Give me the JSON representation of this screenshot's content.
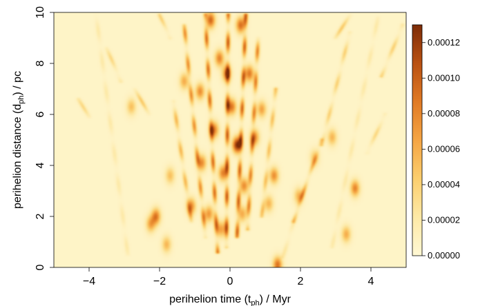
{
  "chart_data": {
    "type": "heatmap",
    "title": "",
    "xlabel": {
      "prefix": "perihelion time (t",
      "subscript": "ph",
      "suffix": ") / Myr"
    },
    "ylabel": {
      "prefix": "perihelion distance (d",
      "subscript": "ph",
      "suffix": ") / pc"
    },
    "xlim": [
      -5,
      5
    ],
    "ylim": [
      0,
      10
    ],
    "x_ticks": [
      -4,
      -2,
      0,
      2,
      4
    ],
    "x_tick_labels": [
      "−4",
      "−2",
      "0",
      "2",
      "4"
    ],
    "y_ticks": [
      0,
      2,
      4,
      6,
      8,
      10
    ],
    "y_tick_labels": [
      "0",
      "2",
      "4",
      "6",
      "8",
      "10"
    ],
    "colorbar": {
      "range": [
        0,
        0.00013
      ],
      "ticks": [
        0,
        2e-05,
        4e-05,
        6e-05,
        8e-05,
        0.0001,
        0.00012
      ],
      "tick_labels": [
        "0.00000",
        "0.00002",
        "0.00004",
        "0.00006",
        "0.00008",
        "0.00010",
        "0.00012"
      ],
      "colors": [
        "#fff8d4",
        "#fde9a6",
        "#fbce6e",
        "#f5a544",
        "#e07a24",
        "#b95112",
        "#7d2c07"
      ]
    },
    "background_value": 6e-06,
    "grid": false,
    "legend": "colorbar-right",
    "ridges": [
      {
        "t0": -0.35,
        "d0": 0.6,
        "t1": -0.7,
        "d1": 9.9,
        "amp": 8.5e-05
      },
      {
        "t0": -0.1,
        "d0": 0.8,
        "t1": -0.05,
        "d1": 9.9,
        "amp": 9.5e-05
      },
      {
        "t0": 0.2,
        "d0": 1.2,
        "t1": 0.45,
        "d1": 9.9,
        "amp": 9e-05
      },
      {
        "t0": 0.5,
        "d0": 1.5,
        "t1": 0.8,
        "d1": 9.0,
        "amp": 7.5e-05
      },
      {
        "t0": -0.7,
        "d0": 1.2,
        "t1": -1.3,
        "d1": 9.5,
        "amp": 7e-05
      },
      {
        "t0": -1.1,
        "d0": 1.8,
        "t1": -1.6,
        "d1": 6.5,
        "amp": 5e-05
      },
      {
        "t0": 0.9,
        "d0": 2.0,
        "t1": 1.3,
        "d1": 7.0,
        "amp": 4.5e-05
      },
      {
        "t0": 1.8,
        "d0": 1.8,
        "t1": 2.6,
        "d1": 5.0,
        "amp": 4.5e-05
      },
      {
        "t0": 2.6,
        "d0": 4.8,
        "t1": 3.4,
        "d1": 9.2,
        "amp": 3.5e-05
      },
      {
        "t0": 3.0,
        "d0": 9.0,
        "t1": 3.4,
        "d1": 9.9,
        "amp": 4e-05
      },
      {
        "t0": -1.7,
        "d0": 9.0,
        "t1": -2.0,
        "d1": 9.9,
        "amp": 3.5e-05
      },
      {
        "t0": -2.3,
        "d0": 6.0,
        "t1": -2.7,
        "d1": 7.0,
        "amp": 4e-05
      },
      {
        "t0": -3.1,
        "d0": 7.3,
        "t1": -3.5,
        "d1": 8.6,
        "amp": 3e-05
      },
      {
        "t0": -4.0,
        "d0": 5.9,
        "t1": -4.3,
        "d1": 6.6,
        "amp": 3e-05
      },
      {
        "t0": 3.9,
        "d0": 4.5,
        "t1": 4.4,
        "d1": 6.0,
        "amp": 3e-05
      },
      {
        "t0": 4.3,
        "d0": 7.5,
        "t1": 4.9,
        "d1": 9.5,
        "amp": 3.5e-05
      },
      {
        "t0": -2.9,
        "d0": 0.5,
        "t1": -3.8,
        "d1": 9.9,
        "amp": 1.5e-05
      },
      {
        "t0": 2.9,
        "d0": 0.8,
        "t1": 4.2,
        "d1": 9.8,
        "amp": 1.5e-05
      },
      {
        "t0": 1.5,
        "d0": 0.4,
        "t1": 2.2,
        "d1": 3.5,
        "amp": 1.8e-05
      }
    ],
    "blobs": [
      {
        "t": 0.2,
        "d": 4.8,
        "amp": 0.00012
      },
      {
        "t": -0.55,
        "d": 9.7,
        "amp": 9e-05
      },
      {
        "t": 0.3,
        "d": 9.5,
        "amp": 8.5e-05
      },
      {
        "t": -0.3,
        "d": 8.2,
        "amp": 7.5e-05
      },
      {
        "t": 0.55,
        "d": 7.6,
        "amp": 8e-05
      },
      {
        "t": -0.85,
        "d": 6.9,
        "amp": 7e-05
      },
      {
        "t": 0.05,
        "d": 6.3,
        "amp": 8e-05
      },
      {
        "t": -0.45,
        "d": 5.4,
        "amp": 7.5e-05
      },
      {
        "t": 0.7,
        "d": 5.1,
        "amp": 7e-05
      },
      {
        "t": -0.8,
        "d": 4.1,
        "amp": 7e-05
      },
      {
        "t": -0.2,
        "d": 3.7,
        "amp": 7.5e-05
      },
      {
        "t": 0.4,
        "d": 3.2,
        "amp": 7e-05
      },
      {
        "t": -1.1,
        "d": 2.4,
        "amp": 7e-05
      },
      {
        "t": -0.6,
        "d": 2.1,
        "amp": 6.5e-05
      },
      {
        "t": -0.25,
        "d": 1.5,
        "amp": 6e-05
      },
      {
        "t": 0.35,
        "d": 2.1,
        "amp": 5.5e-05
      },
      {
        "t": 1.25,
        "d": 3.6,
        "amp": 7e-05
      },
      {
        "t": 1.1,
        "d": 2.5,
        "amp": 5e-05
      },
      {
        "t": -2.1,
        "d": 2.0,
        "amp": 8e-05
      },
      {
        "t": -2.25,
        "d": 1.7,
        "amp": 6e-05
      },
      {
        "t": -1.8,
        "d": 0.9,
        "amp": 5e-05
      },
      {
        "t": 1.35,
        "d": 0.1,
        "amp": 8.5e-05
      },
      {
        "t": 1.95,
        "d": 2.8,
        "amp": 5e-05
      },
      {
        "t": 3.55,
        "d": 3.1,
        "amp": 7.5e-05
      },
      {
        "t": 3.3,
        "d": 1.3,
        "amp": 5.5e-05
      },
      {
        "t": 2.9,
        "d": 5.1,
        "amp": 5e-05
      },
      {
        "t": 0.9,
        "d": 6.2,
        "amp": 6e-05
      },
      {
        "t": -0.1,
        "d": 7.6,
        "amp": 7e-05
      },
      {
        "t": -1.3,
        "d": 7.3,
        "amp": 5.5e-05
      },
      {
        "t": -1.7,
        "d": 3.6,
        "amp": 4.5e-05
      },
      {
        "t": -2.8,
        "d": 6.3,
        "amp": 4.5e-05
      },
      {
        "t": 2.4,
        "d": 4.3,
        "amp": 4e-05
      }
    ]
  }
}
